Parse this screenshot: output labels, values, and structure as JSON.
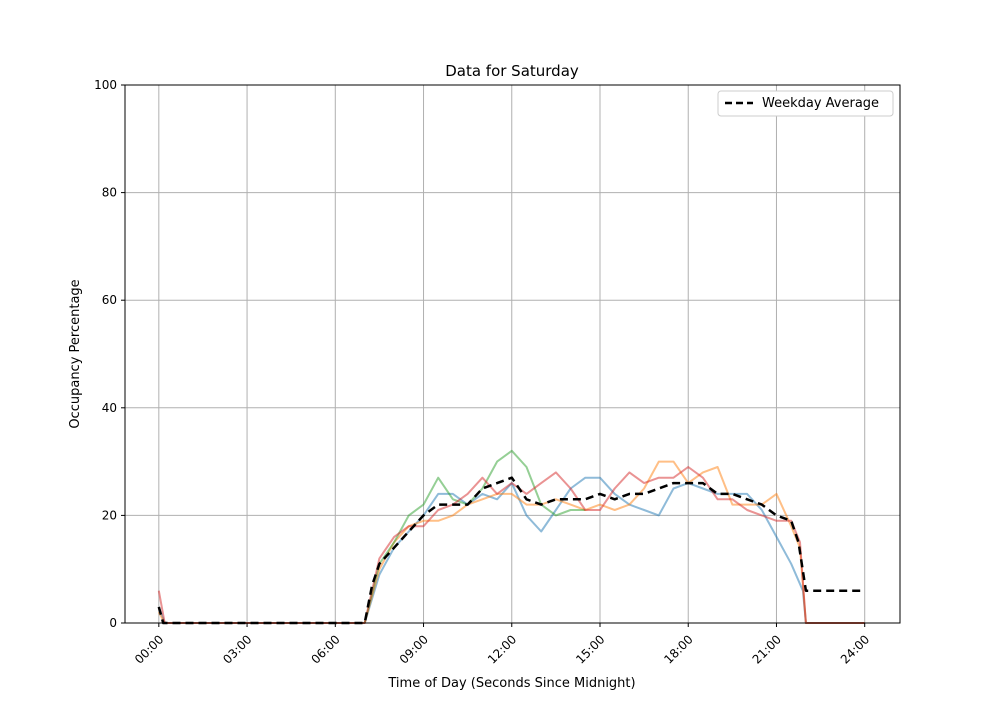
{
  "chart_data": {
    "type": "line",
    "title": "Data for Saturday",
    "xlabel": "Time of Day (Seconds Since Midnight)",
    "ylabel": "Occupancy Percentage",
    "xlim_hours": [
      -1.15,
      25.2
    ],
    "ylim": [
      0,
      100
    ],
    "grid": true,
    "legend_position": "top-right",
    "x_ticks": [
      {
        "hours": 0,
        "label": "00:00"
      },
      {
        "hours": 3,
        "label": "03:00"
      },
      {
        "hours": 6,
        "label": "06:00"
      },
      {
        "hours": 9,
        "label": "09:00"
      },
      {
        "hours": 12,
        "label": "12:00"
      },
      {
        "hours": 15,
        "label": "15:00"
      },
      {
        "hours": 18,
        "label": "18:00"
      },
      {
        "hours": 21,
        "label": "21:00"
      },
      {
        "hours": 24,
        "label": "24:00"
      }
    ],
    "y_ticks": [
      0,
      20,
      40,
      60,
      80,
      100
    ],
    "series": [
      {
        "color": "#1f77b4",
        "style": "solid",
        "x": [
          0,
          0.2,
          7,
          7.5,
          8,
          8.5,
          9,
          9.5,
          10,
          10.5,
          11,
          11.5,
          12,
          12.5,
          13,
          13.5,
          14,
          14.5,
          15,
          15.5,
          16,
          16.5,
          17,
          17.5,
          18,
          18.5,
          19,
          19.5,
          20,
          20.5,
          21,
          21.5,
          21.9,
          22,
          24
        ],
        "y": [
          3,
          0,
          0,
          9,
          14,
          17,
          20,
          24,
          24,
          22,
          24,
          23,
          26,
          20,
          17,
          21,
          25,
          27,
          27,
          24,
          22,
          21,
          20,
          25,
          26,
          25,
          24,
          24,
          24,
          21,
          16,
          11,
          6,
          0,
          0
        ]
      },
      {
        "color": "#ff7f0e",
        "style": "solid",
        "x": [
          0,
          0.2,
          7,
          7.5,
          8,
          8.5,
          9,
          9.5,
          10,
          10.5,
          11,
          11.5,
          12,
          12.5,
          13,
          13.5,
          14,
          14.5,
          15,
          15.5,
          16,
          16.5,
          17,
          17.5,
          18,
          18.5,
          19,
          19.5,
          20,
          20.5,
          21,
          21.5,
          21.8,
          22,
          24
        ],
        "y": [
          2,
          0,
          0,
          10,
          15,
          18,
          19,
          19,
          20,
          22,
          23,
          24,
          24,
          22,
          22,
          23,
          22,
          21,
          22,
          21,
          22,
          25,
          30,
          30,
          26,
          28,
          29,
          22,
          22,
          22,
          24,
          18,
          14,
          0,
          0
        ]
      },
      {
        "color": "#2ca02c",
        "style": "solid",
        "x": [
          7,
          7.5,
          8,
          8.5,
          9,
          9.5,
          10,
          10.5,
          11,
          11.5,
          12,
          12.5,
          13,
          13.5,
          14,
          14.5
        ],
        "y": [
          0,
          11,
          15,
          20,
          22,
          27,
          23,
          22,
          25,
          30,
          32,
          29,
          22,
          20,
          21,
          21
        ]
      },
      {
        "color": "#d62728",
        "style": "solid",
        "x": [
          0,
          0.2,
          7,
          7.5,
          8,
          8.5,
          9,
          9.5,
          10,
          10.5,
          11,
          11.5,
          12,
          12.5,
          13,
          13.5,
          14,
          14.5,
          15,
          15.5,
          16,
          16.5,
          17,
          17.5,
          18,
          18.5,
          19,
          19.5,
          20,
          20.5,
          21,
          21.5,
          21.8,
          22,
          24
        ],
        "y": [
          6,
          0,
          0,
          12,
          16,
          18,
          18,
          21,
          22,
          24,
          27,
          24,
          26,
          24,
          26,
          28,
          25,
          21,
          21,
          25,
          28,
          26,
          27,
          27,
          29,
          27,
          23,
          23,
          21,
          20,
          19,
          19,
          15,
          0,
          0
        ]
      },
      {
        "name": "Weekday Average",
        "color": "#000000",
        "style": "dashed",
        "x": [
          0,
          0.15,
          7,
          7.25,
          7.5,
          8,
          8.5,
          9,
          9.5,
          10,
          10.5,
          11,
          11.5,
          12,
          12.5,
          13,
          13.5,
          14,
          14.5,
          15,
          15.5,
          16,
          16.5,
          17,
          17.5,
          18,
          18.5,
          19,
          19.5,
          20,
          20.5,
          21,
          21.5,
          21.75,
          22,
          24
        ],
        "y": [
          3,
          0,
          0,
          7,
          11,
          14,
          17,
          20,
          22,
          22,
          22,
          25,
          26,
          27,
          23,
          22,
          23,
          23,
          23,
          24,
          23,
          24,
          24,
          25,
          26,
          26,
          26,
          24,
          24,
          23,
          22,
          20,
          19,
          15,
          6,
          6
        ]
      }
    ]
  }
}
